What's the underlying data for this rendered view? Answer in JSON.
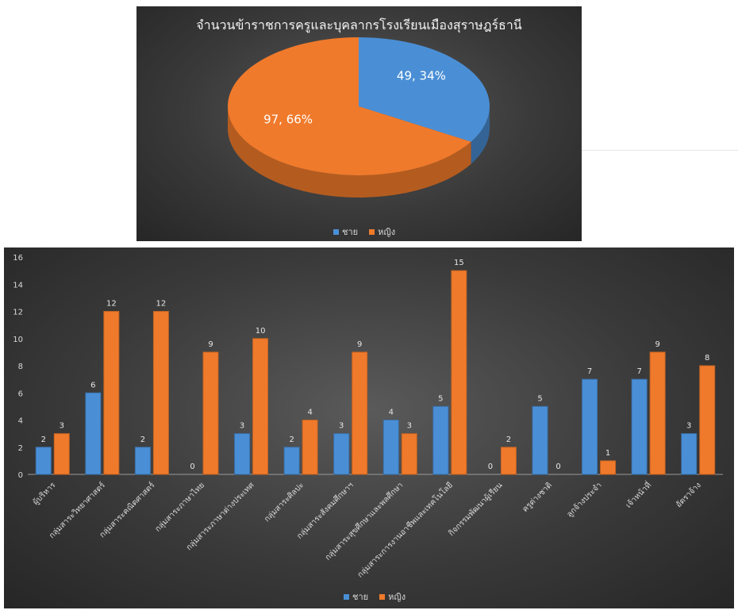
{
  "colors": {
    "male": "#4a8fd6",
    "female": "#f07a2b"
  },
  "chart_data": [
    {
      "type": "pie",
      "title": "จำนวนข้าราชการครูและบุคลากรโรงเรียนเมืองสุราษฎร์ธานี",
      "categories": [
        "ชาย",
        "หญิง"
      ],
      "values": [
        49,
        97
      ],
      "data_labels": [
        "49, 34%",
        "97, 66%"
      ],
      "legend": [
        "ชาย",
        "หญิง"
      ],
      "legend_position": "bottom"
    },
    {
      "type": "bar",
      "title": "",
      "categories": [
        "ผู้บริหาร",
        "กลุ่มสาระวิทยาศาสตร์",
        "กลุ่มสาระคณิตศาสตร์",
        "กลุ่มสาระภาษาไทย",
        "กลุ่มสาระภาษาต่างประเทศ",
        "กลุ่มสาระศิลปะ",
        "กลุ่มสาระสังคมศึกษาฯ",
        "กลุ่มสาระสุขศึกษาและพลศึกษา",
        "กลุ่มสาระการงานอาชีพและเทคโนโลยี",
        "กิจกรรมพัฒนาผู้เรียน",
        "ครูต่างชาติ",
        "ลูกจ้างประจำ",
        "เจ้าหน้าที่",
        "อัตราจ้าง"
      ],
      "series": [
        {
          "name": "ชาย",
          "values": [
            2,
            6,
            2,
            0,
            3,
            2,
            3,
            4,
            5,
            0,
            5,
            7,
            7,
            3
          ]
        },
        {
          "name": "หญิง",
          "values": [
            3,
            12,
            12,
            9,
            10,
            4,
            9,
            3,
            15,
            2,
            0,
            1,
            9,
            8
          ]
        }
      ],
      "ylim": [
        0,
        16
      ],
      "yticks": [
        "0",
        "2",
        "4",
        "6",
        "8",
        "10",
        "12",
        "14",
        "16"
      ],
      "grid": false,
      "legend": [
        "ชาย",
        "หญิง"
      ],
      "legend_position": "bottom"
    }
  ]
}
